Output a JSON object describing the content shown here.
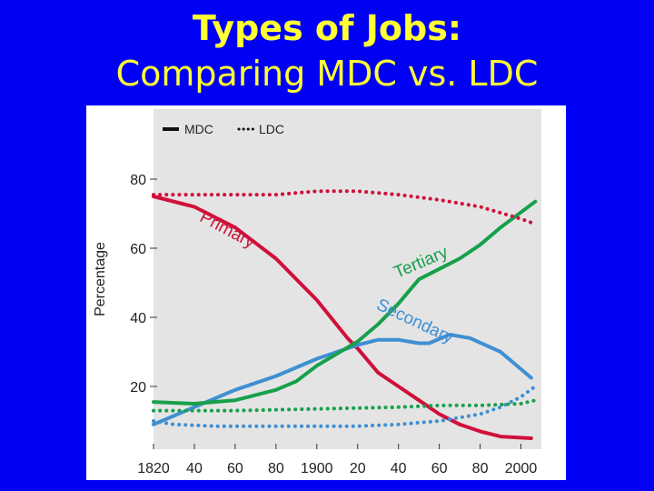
{
  "slide": {
    "title": "Types of Jobs:",
    "subtitle": "Comparing MDC vs. LDC"
  },
  "chart_data": {
    "type": "line",
    "title": "",
    "xlabel": "",
    "ylabel": "Percentage",
    "xlim": [
      1820,
      2010
    ],
    "ylim": [
      0,
      100
    ],
    "yticks": [
      20,
      40,
      60,
      80
    ],
    "xticks": [
      {
        "value": 1820,
        "label": "1820"
      },
      {
        "value": 1840,
        "label": "40"
      },
      {
        "value": 1860,
        "label": "60"
      },
      {
        "value": 1880,
        "label": "80"
      },
      {
        "value": 1900,
        "label": "1900"
      },
      {
        "value": 1920,
        "label": "20"
      },
      {
        "value": 1940,
        "label": "40"
      },
      {
        "value": 1960,
        "label": "60"
      },
      {
        "value": 1980,
        "label": "80"
      },
      {
        "value": 2000,
        "label": "2000"
      }
    ],
    "grid": false,
    "legend": {
      "placement": "top-left",
      "entries": [
        {
          "label": "MDC",
          "style": "solid"
        },
        {
          "label": "LDC",
          "style": "dotted"
        }
      ]
    },
    "series": [
      {
        "group": "MDC",
        "sector": "Primary",
        "color": "#d0103a",
        "style": "solid",
        "points": [
          [
            1820,
            75
          ],
          [
            1840,
            72
          ],
          [
            1860,
            66
          ],
          [
            1880,
            57
          ],
          [
            1900,
            45
          ],
          [
            1915,
            34
          ],
          [
            1920,
            31
          ],
          [
            1930,
            24
          ],
          [
            1940,
            20
          ],
          [
            1950,
            16
          ],
          [
            1960,
            12
          ],
          [
            1970,
            9
          ],
          [
            1980,
            7
          ],
          [
            1990,
            5.5
          ],
          [
            2005,
            5
          ]
        ]
      },
      {
        "group": "MDC",
        "sector": "Secondary",
        "color": "#3f8fd2",
        "style": "solid",
        "points": [
          [
            1820,
            9
          ],
          [
            1840,
            14
          ],
          [
            1860,
            19
          ],
          [
            1880,
            23
          ],
          [
            1900,
            28
          ],
          [
            1920,
            32
          ],
          [
            1930,
            33.5
          ],
          [
            1940,
            33.5
          ],
          [
            1950,
            32.5
          ],
          [
            1955,
            32.5
          ],
          [
            1965,
            35
          ],
          [
            1975,
            34
          ],
          [
            1990,
            30
          ],
          [
            2005,
            22.5
          ]
        ]
      },
      {
        "group": "MDC",
        "sector": "Tertiary",
        "color": "#17a04a",
        "style": "solid",
        "points": [
          [
            1820,
            15.5
          ],
          [
            1840,
            15
          ],
          [
            1860,
            16
          ],
          [
            1880,
            19
          ],
          [
            1890,
            21.5
          ],
          [
            1900,
            26
          ],
          [
            1920,
            33
          ],
          [
            1930,
            38
          ],
          [
            1940,
            44
          ],
          [
            1950,
            51
          ],
          [
            1960,
            54
          ],
          [
            1970,
            57
          ],
          [
            1980,
            61
          ],
          [
            1990,
            66
          ],
          [
            2007,
            73.5
          ]
        ]
      },
      {
        "group": "LDC",
        "sector": "Primary",
        "color": "#d0103a",
        "style": "dotted",
        "points": [
          [
            1820,
            75.5
          ],
          [
            1860,
            75.5
          ],
          [
            1880,
            75.5
          ],
          [
            1900,
            76.5
          ],
          [
            1920,
            76.5
          ],
          [
            1940,
            75.5
          ],
          [
            1960,
            74
          ],
          [
            1980,
            72
          ],
          [
            2000,
            68.5
          ],
          [
            2007,
            67
          ]
        ]
      },
      {
        "group": "LDC",
        "sector": "Secondary",
        "color": "#3f8fd2",
        "style": "dotted",
        "points": [
          [
            1820,
            10
          ],
          [
            1830,
            9
          ],
          [
            1850,
            8.5
          ],
          [
            1880,
            8.5
          ],
          [
            1900,
            8.5
          ],
          [
            1920,
            8.5
          ],
          [
            1940,
            9
          ],
          [
            1960,
            10
          ],
          [
            1970,
            11
          ],
          [
            1980,
            12
          ],
          [
            1990,
            14
          ],
          [
            2000,
            17
          ],
          [
            2007,
            20
          ]
        ]
      },
      {
        "group": "LDC",
        "sector": "Tertiary",
        "color": "#17a04a",
        "style": "dotted",
        "points": [
          [
            1820,
            13
          ],
          [
            1860,
            13
          ],
          [
            1900,
            13.5
          ],
          [
            1940,
            14
          ],
          [
            1960,
            14.5
          ],
          [
            1980,
            14.5
          ],
          [
            2000,
            15
          ],
          [
            2007,
            16
          ]
        ]
      }
    ],
    "annotations": [
      {
        "text": "Primary",
        "color": "#d0103a",
        "anchor": [
          1855,
          64
        ],
        "rotate": 28
      },
      {
        "text": "Tertiary",
        "color": "#17a04a",
        "anchor": [
          1952,
          54.5
        ],
        "rotate": -23
      },
      {
        "text": "Secondary",
        "color": "#3f8fd2",
        "anchor": [
          1947,
          37.5
        ],
        "rotate": 25
      }
    ]
  }
}
